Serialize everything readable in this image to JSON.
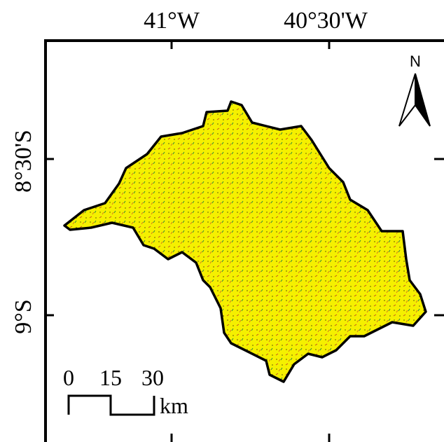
{
  "axis_labels": {
    "top": [
      "41°W",
      "40°30'W"
    ],
    "left": [
      "8°30'S",
      "9°S"
    ]
  },
  "north_arrow": {
    "label": "N"
  },
  "scale_bar": {
    "labels": [
      "0",
      "15",
      "30"
    ],
    "unit": "km"
  }
}
